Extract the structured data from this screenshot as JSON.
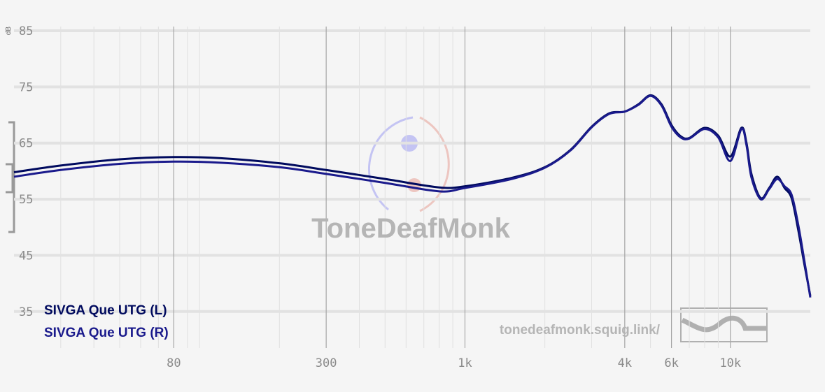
{
  "chart_data": {
    "type": "line",
    "y_label": "dB",
    "watermark": "ToneDeafMonk",
    "url": "tonedeafmonk.squig.link/",
    "x": [
      20,
      30,
      50,
      80,
      120,
      200,
      300,
      500,
      800,
      1000,
      1500,
      2000,
      2500,
      3000,
      3500,
      4000,
      4500,
      5000,
      5500,
      6000,
      6500,
      7000,
      8000,
      9000,
      10000,
      11000,
      11500,
      12000,
      13000,
      14000,
      15000,
      16000,
      17000,
      18000,
      19000,
      20000
    ],
    "series": [
      {
        "name": "SIVGA Que UTG (L)",
        "color": "#000a5e",
        "values": [
          59.8,
          61.0,
          62.1,
          62.5,
          62.3,
          61.4,
          60.2,
          58.6,
          57.1,
          57.3,
          58.8,
          60.7,
          63.8,
          67.9,
          70.3,
          70.6,
          71.9,
          73.5,
          71.9,
          68.2,
          66.2,
          65.9,
          67.7,
          66.3,
          62.6,
          67.7,
          65.0,
          59.5,
          55.2,
          57.0,
          59.0,
          57.0,
          55.2,
          49.6,
          43.4,
          37.8
        ]
      },
      {
        "name": "SIVGA Que UTG (R)",
        "color": "#1a1a8c",
        "values": [
          59.0,
          60.2,
          61.3,
          61.7,
          61.5,
          60.7,
          59.5,
          57.9,
          56.4,
          57.0,
          58.6,
          60.6,
          63.7,
          67.8,
          70.2,
          70.6,
          71.8,
          73.4,
          71.7,
          67.9,
          66.0,
          65.8,
          67.5,
          66.0,
          61.8,
          67.5,
          64.6,
          58.9,
          55.0,
          56.8,
          58.6,
          57.3,
          55.8,
          50.5,
          44.0,
          37.5
        ]
      }
    ],
    "xlim": [
      20,
      20000
    ],
    "ylim": [
      28.5,
      85.75
    ],
    "log_x": true,
    "xticks": [
      80,
      300,
      {
        "value": 1000,
        "label": "1k"
      },
      {
        "value": 4000,
        "label": "4k"
      },
      {
        "value": 6000,
        "label": "6k"
      },
      {
        "value": 10000,
        "label": "10k"
      }
    ],
    "yticks": [
      35,
      45,
      55,
      65,
      75,
      85
    ],
    "grid": true,
    "legend": "lower-left"
  }
}
